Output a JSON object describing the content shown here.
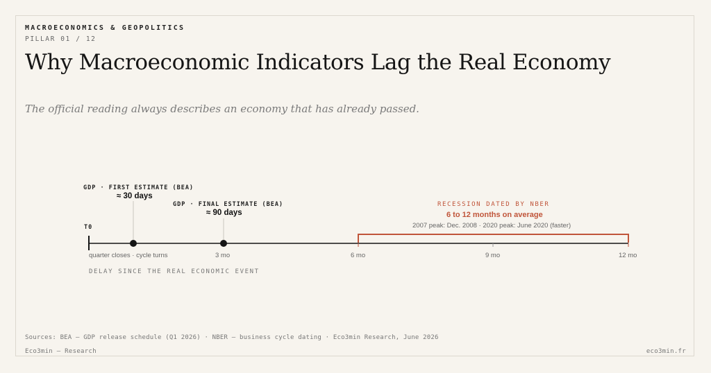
{
  "header": {
    "kicker": "MACROECONOMICS & GEOPOLITICS",
    "pillar": "PILLAR 01 / 12",
    "title": "Why Macroeconomic Indicators Lag the Real Economy",
    "subtitle": "The official reading always describes an economy that has already passed."
  },
  "timeline": {
    "origin_label": "T0",
    "axis_caption": "DELAY SINCE THE REAL ECONOMIC EVENT",
    "ticks": [
      {
        "label": "quarter closes · cycle turns"
      },
      {
        "label": "3 mo"
      },
      {
        "label": "6 mo"
      },
      {
        "label": "9 mo"
      },
      {
        "label": "12 mo"
      }
    ],
    "events": [
      {
        "label": "GDP · FIRST ESTIMATE (BEA)",
        "value": "≈ 30 days"
      },
      {
        "label": "GDP · FINAL ESTIMATE (BEA)",
        "value": "≈ 90 days"
      }
    ],
    "range": {
      "label": "RECESSION DATED BY NBER",
      "value": "6 to 12 months on average",
      "note": "2007 peak: Dec. 2008 · 2020 peak: June 2020 (faster)"
    }
  },
  "colors": {
    "accent": "#c0553a",
    "ink": "#151515",
    "background": "#f7f4ee"
  },
  "footer": {
    "sources": "Sources: BEA — GDP release schedule (Q1 2026) · NBER — business cycle dating · Eco3min Research, June 2026",
    "brand": "Eco3min — Research",
    "site": "eco3min.fr"
  }
}
